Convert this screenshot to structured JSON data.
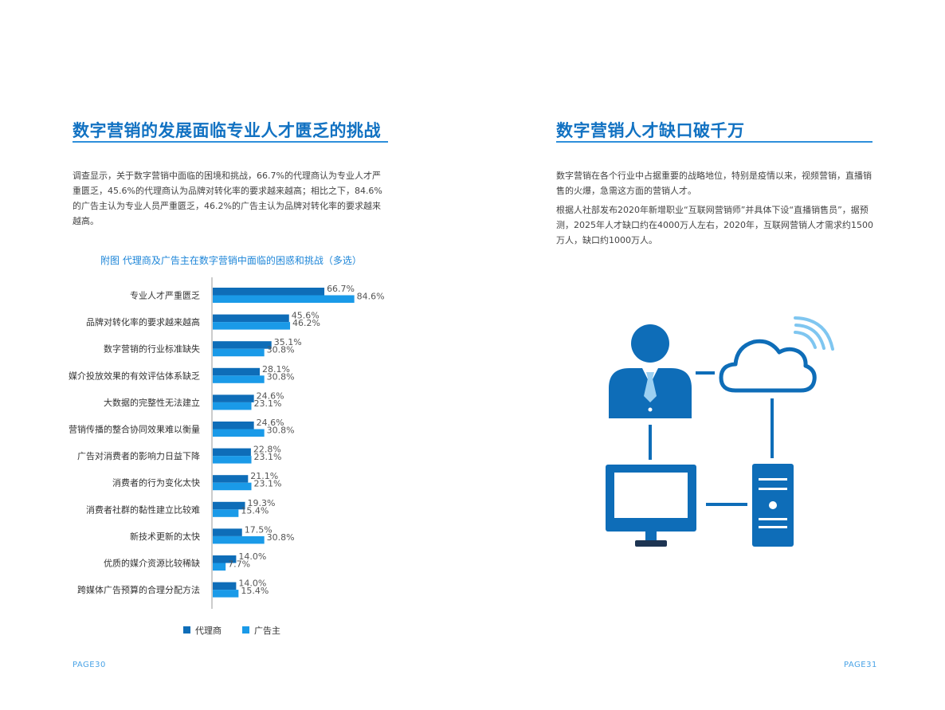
{
  "left": {
    "title": "数字营销的发展面临专业人才匮乏的挑战",
    "paragraph": "调查显示，关于数字营销中面临的困境和挑战，66.7%的代理商认为专业人才严重匮乏，45.6%的代理商认为品牌对转化率的要求越来越高；相比之下，84.6%的广告主认为专业人员严重匮乏，46.2%的广告主认为品牌对转化率的要求越来越高。",
    "page_number": "PAGE30"
  },
  "right": {
    "title": "数字营销人才缺口破千万",
    "paragraph1": "数字营销在各个行业中占据重要的战略地位，特别是疫情以来，视频营销，直播销售的火爆，急需这方面的营销人才。",
    "paragraph2": "根据人社部发布2020年新增职业“互联网营销师”并具体下设“直播销售员”，据预测，2025年人才缺口约在4000万人左右，2020年，互联网营销人才需求约1500万人，缺口约1000万人。",
    "page_number": "PAGE31",
    "illustration": {
      "icons": [
        "person-icon",
        "cloud-icon",
        "wifi-signal-icon",
        "monitor-icon",
        "server-tower-icon"
      ],
      "color": "#0e6db8"
    }
  },
  "chart_data": {
    "type": "bar",
    "orientation": "horizontal",
    "title": "附图 代理商及广告主在数字营销中面临的困惑和挑战（多选）",
    "categories": [
      "专业人才严重匮乏",
      "品牌对转化率的要求越来越高",
      "数字营销的行业标准缺失",
      "媒介投放效果的有效评估体系缺乏",
      "大数据的完整性无法建立",
      "营销传播的整合协同效果难以衡量",
      "广告对消费者的影响力日益下降",
      "消费者的行为变化太快",
      "消费者社群的黏性建立比较难",
      "新技术更新的太快",
      "优质的媒介资源比较稀缺",
      "跨媒体广告预算的合理分配方法"
    ],
    "series": [
      {
        "name": "代理商",
        "color": "#0e6db8",
        "values": [
          66.7,
          45.6,
          35.1,
          28.1,
          24.6,
          24.6,
          22.8,
          21.1,
          19.3,
          17.5,
          14.0,
          14.0
        ],
        "labels": [
          "66.7%",
          "45.6%",
          "35.1%",
          "28.1%",
          "24.6%",
          "24.6%",
          "22.8%",
          "21.1%",
          "19.3%",
          "17.5%",
          "14.0%",
          "14.0%"
        ]
      },
      {
        "name": "广告主",
        "color": "#1a9ae8",
        "values": [
          84.6,
          46.2,
          30.8,
          30.8,
          23.1,
          30.8,
          23.1,
          23.1,
          15.4,
          30.8,
          7.7,
          15.4
        ],
        "labels": [
          "84.6%",
          "46.2%",
          "30.8%",
          "30.8%",
          "23.1%",
          "30.8%",
          "23.1%",
          "23.1%",
          "15.4%",
          "30.8%",
          "7.7%",
          "15.4%"
        ]
      }
    ],
    "xlim": [
      0,
      100
    ],
    "grid": false,
    "legend_position": "bottom"
  }
}
